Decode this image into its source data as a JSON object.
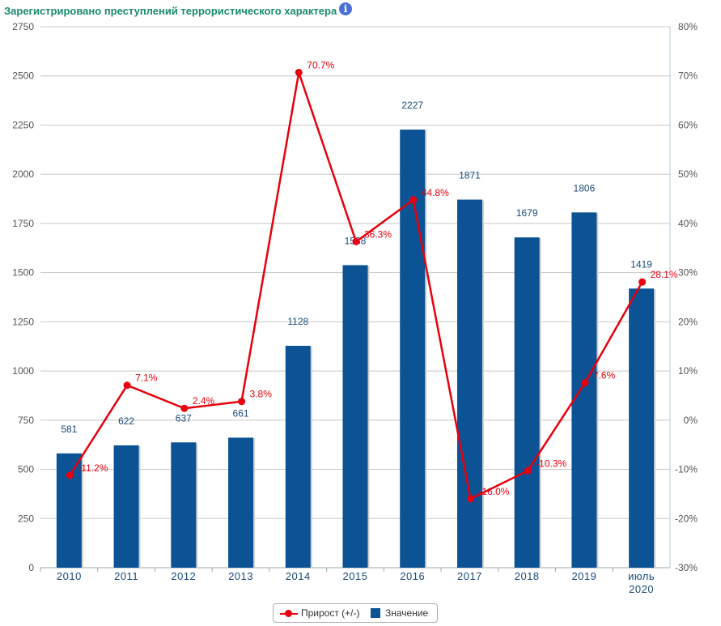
{
  "title": "Зарегистрировано преступлений террористического характера",
  "info_icon": "info-icon",
  "chart_data": {
    "type": "bar",
    "categories": [
      "2010",
      "2011",
      "2012",
      "2013",
      "2014",
      "2015",
      "2016",
      "2017",
      "2018",
      "2019",
      "июль\n2020"
    ],
    "series": [
      {
        "name": "Значение",
        "type": "bar",
        "axis": "left",
        "color": "#0b5394",
        "values": [
          581,
          622,
          637,
          661,
          1128,
          1538,
          2227,
          1871,
          1679,
          1806,
          1419
        ],
        "labels": [
          "581",
          "622",
          "637",
          "661",
          "1128",
          "1538",
          "2227",
          "1871",
          "1679",
          "1806",
          "1419"
        ]
      },
      {
        "name": "Прирост (+/-)",
        "type": "line",
        "axis": "right",
        "color": "#e8000e",
        "values": [
          -11.2,
          7.1,
          2.4,
          3.8,
          70.7,
          36.3,
          44.8,
          -16.0,
          -10.3,
          7.6,
          28.1
        ],
        "labels": [
          "-11.2%",
          "7.1%",
          "2.4%",
          "3.8%",
          "70.7%",
          "36.3%",
          "44.8%",
          "-16.0%",
          "-10.3%",
          "7.6%",
          "28.1%"
        ]
      }
    ],
    "y_left": {
      "lim": [
        0,
        2750
      ],
      "ticks": [
        "0",
        "250",
        "500",
        "750",
        "1000",
        "1250",
        "1500",
        "1750",
        "2000",
        "2250",
        "2500",
        "2750"
      ]
    },
    "y_right": {
      "lim": [
        -30,
        80
      ],
      "ticks": [
        "-30%",
        "-20%",
        "-10%",
        "0%",
        "10%",
        "20%",
        "30%",
        "40%",
        "50%",
        "60%",
        "70%",
        "80%"
      ]
    },
    "grid": true,
    "legend": "bottom-center"
  },
  "legend": {
    "line_label": "Прирост (+/-)",
    "bar_label": "Значение"
  }
}
